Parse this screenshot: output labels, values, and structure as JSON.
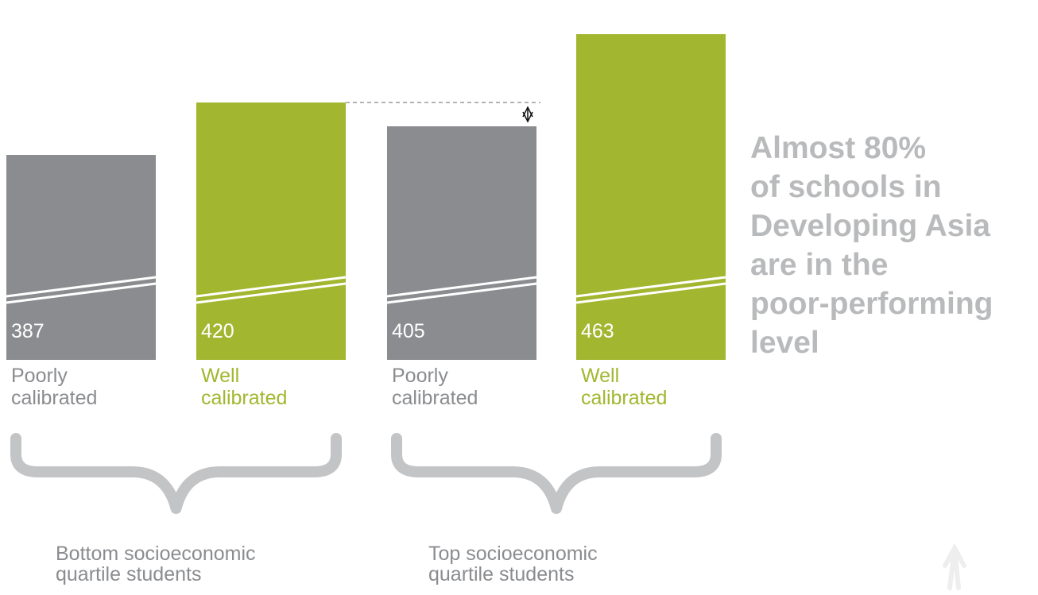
{
  "colors": {
    "poor": "#8a8c8f",
    "well": "#a2b72f",
    "brace": "#c3c4c6",
    "annotation": "#b9babc",
    "ref_line": "#9a9b9d"
  },
  "chart_data": {
    "type": "bar",
    "axis_break": true,
    "gap_marker": "double-arrow between 420 and 405",
    "groups": [
      {
        "label_lines": [
          "Bottom socioeconomic",
          "quartile students"
        ],
        "bars": [
          {
            "label_lines": [
              "Poorly",
              "calibrated"
            ],
            "value": 387,
            "value_text": "387",
            "category": "poor"
          },
          {
            "label_lines": [
              "Well",
              "calibrated"
            ],
            "value": 420,
            "value_text": "420",
            "category": "well"
          }
        ]
      },
      {
        "label_lines": [
          "Top socioeconomic",
          "quartile students"
        ],
        "bars": [
          {
            "label_lines": [
              "Poorly",
              "calibrated"
            ],
            "value": 405,
            "value_text": "405",
            "category": "poor"
          },
          {
            "label_lines": [
              "Well",
              "calibrated"
            ],
            "value": 463,
            "value_text": "463",
            "category": "well"
          }
        ]
      }
    ],
    "annotation_lines": [
      "Almost 80%",
      "of schools in",
      "Developing Asia",
      "are in the",
      "poor-performing",
      "level"
    ]
  }
}
